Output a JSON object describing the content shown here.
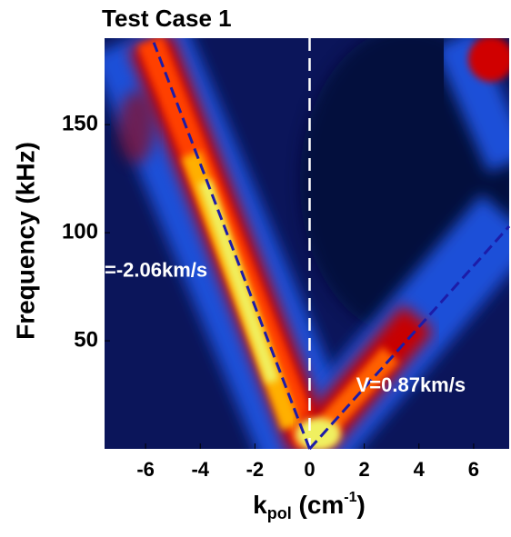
{
  "chart_data": {
    "type": "heatmap",
    "title": "Test Case 1",
    "y_label": "Frequency (kHz)",
    "x_label": {
      "main": "k",
      "sub": "pol",
      "unit": " (cm",
      "sup": "-1",
      "close": ")"
    },
    "xlim": [
      -7.5,
      7.3
    ],
    "ylim": [
      0,
      190
    ],
    "xticks": [
      -6,
      -4,
      -2,
      0,
      2,
      4,
      6
    ],
    "yticks": [
      50,
      100,
      150
    ],
    "lines": [
      {
        "x": [
          0,
          -5.7
        ],
        "y": [
          0,
          188
        ],
        "color": "#1c1ca8"
      },
      {
        "x": [
          0,
          7.3
        ],
        "y": [
          0,
          103
        ],
        "color": "#1c1ca8"
      }
    ],
    "zero_line": {
      "x": 0,
      "color": "#ffffff"
    },
    "annotations": [
      {
        "text": "=-2.06km/s",
        "x": -7.5,
        "y": 82
      },
      {
        "text": "V=0.87km/s",
        "x": 1.7,
        "y": 29
      }
    ]
  }
}
